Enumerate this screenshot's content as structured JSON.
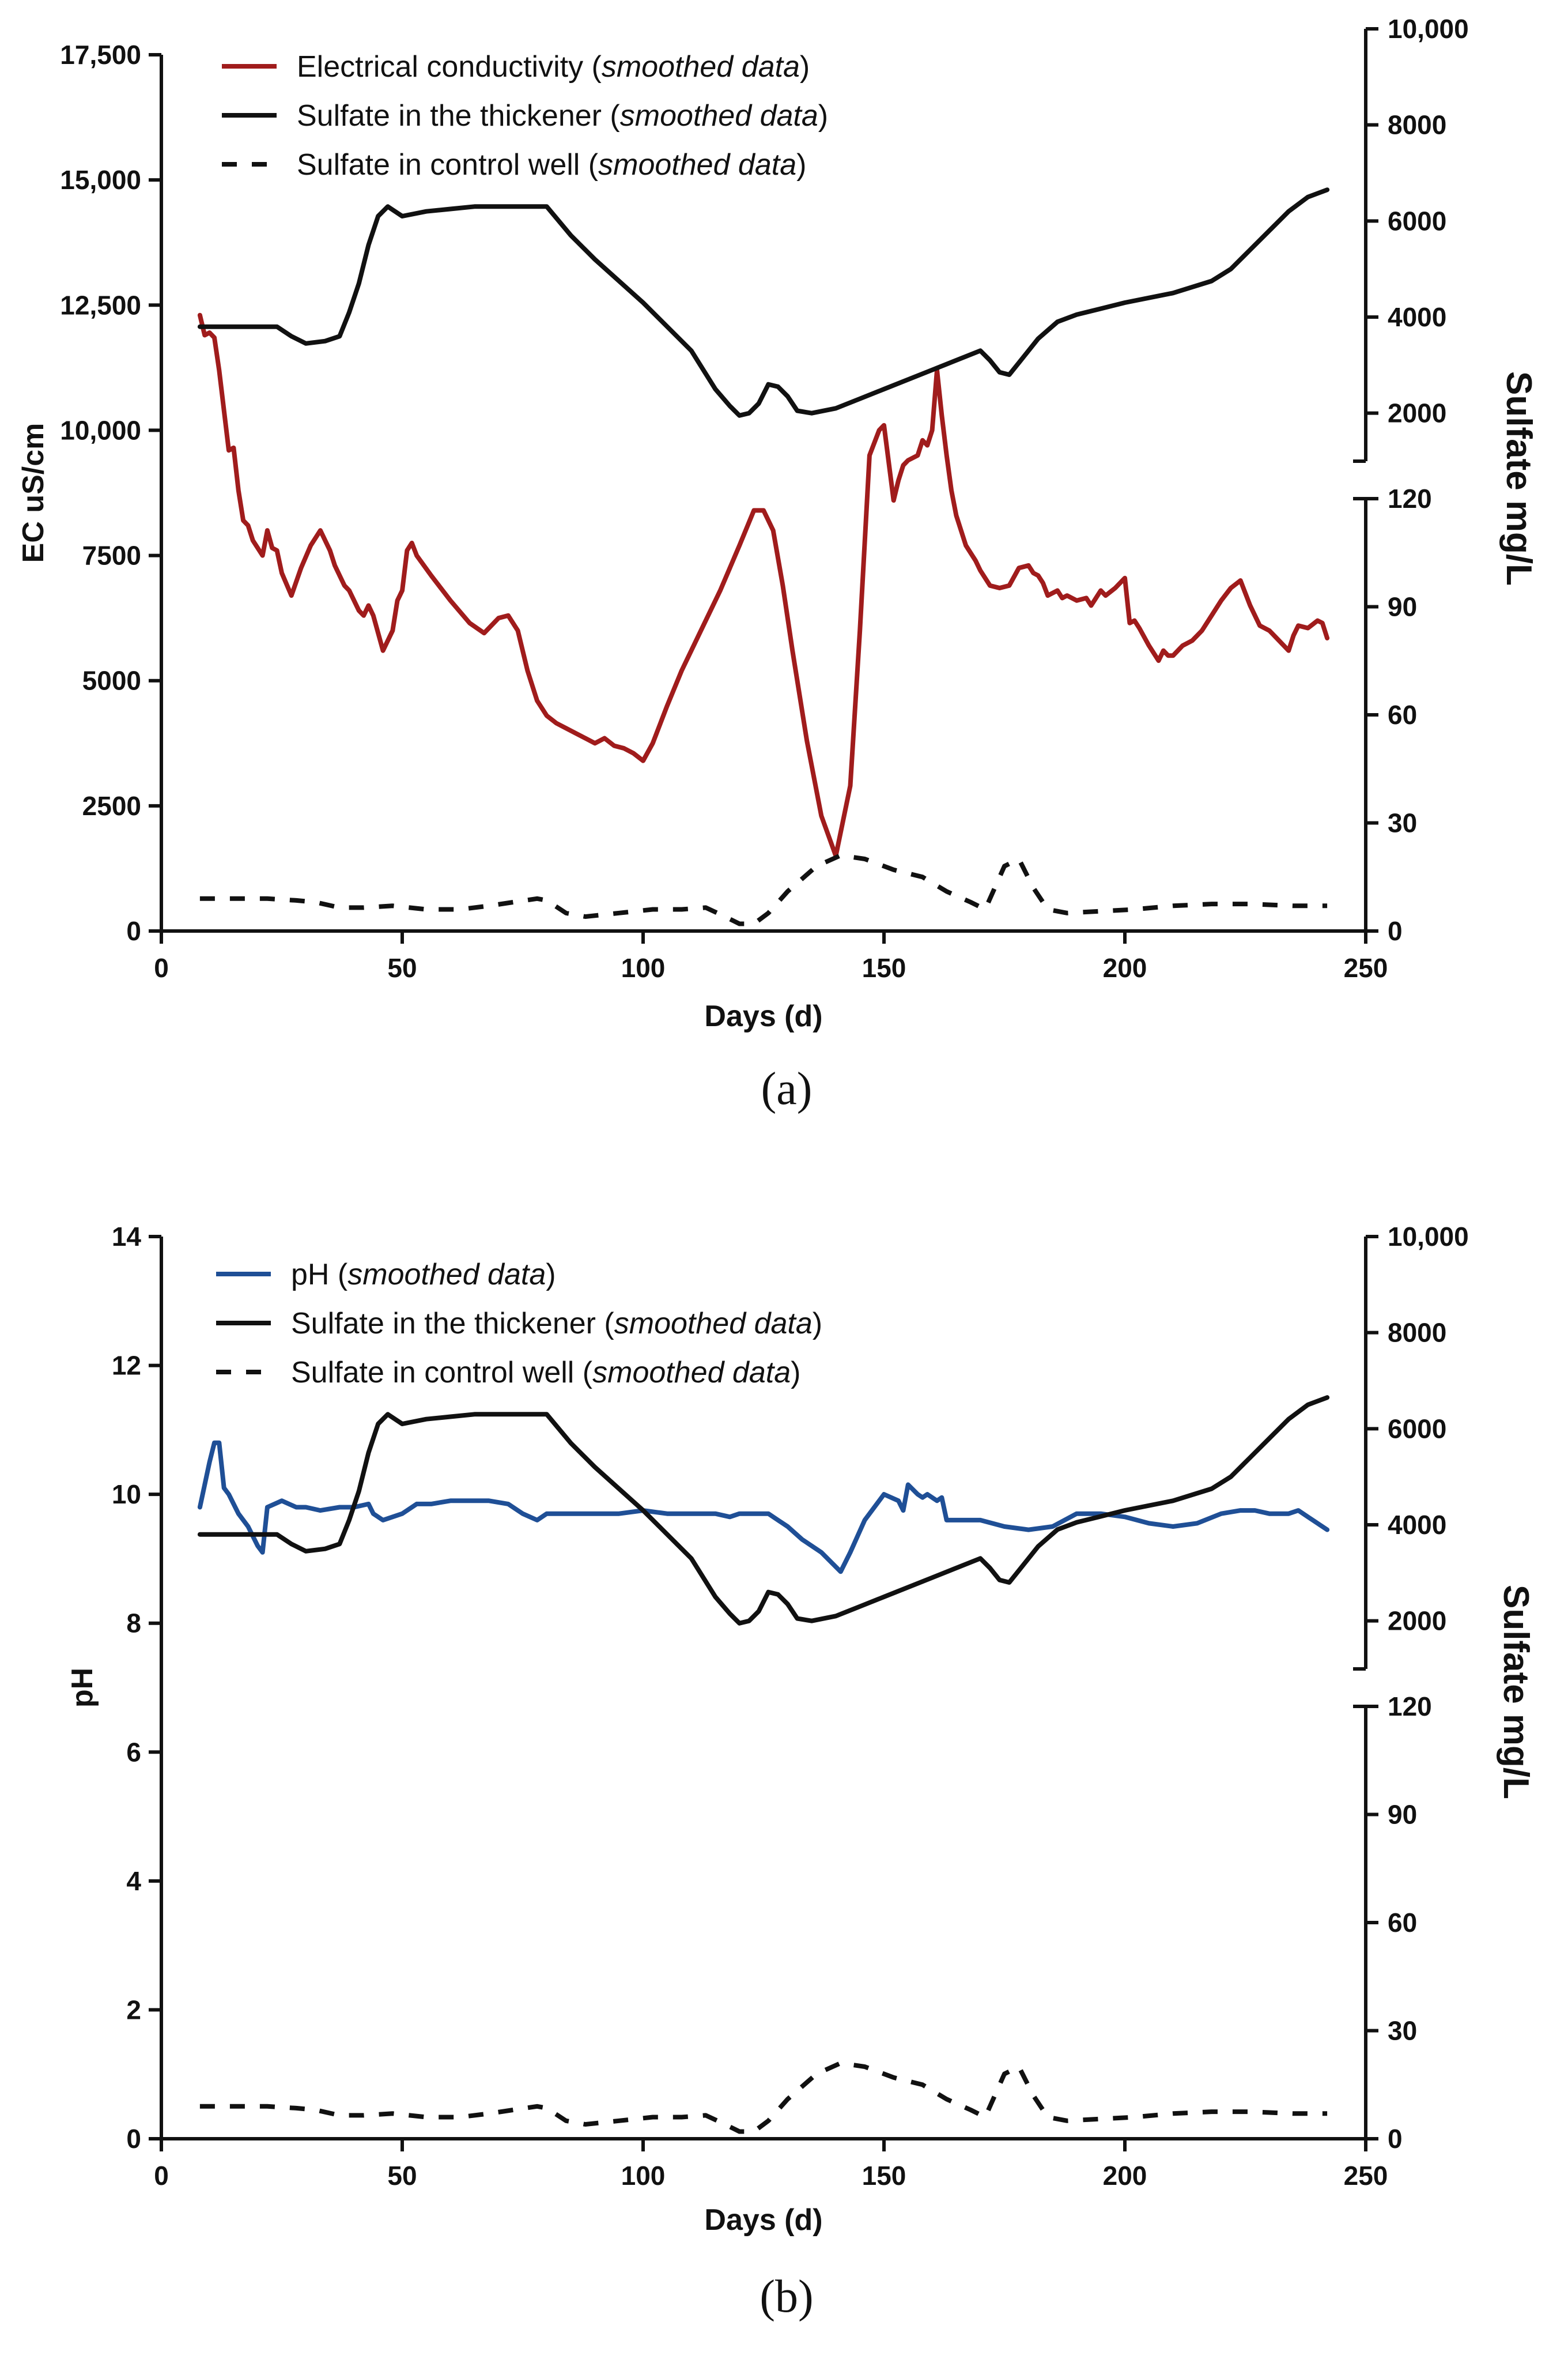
{
  "chart_data": [
    {
      "id": "a",
      "type": "line",
      "caption": "(a)",
      "xlabel": "Days (d)",
      "xlim": [
        0,
        250
      ],
      "xticks": [
        0,
        50,
        100,
        150,
        200,
        250
      ],
      "left_axis": {
        "label": "EC uS/cm",
        "lim": [
          0,
          17500
        ],
        "ticks": [
          0,
          2500,
          5000,
          7500,
          10000,
          12500,
          15000,
          17500
        ],
        "tick_labels": [
          "0",
          "2500",
          "5000",
          "7500",
          "10,000",
          "12,500",
          "15,000",
          "17,500"
        ]
      },
      "right_axis": {
        "label": "Sulfate  mg/L",
        "upper": {
          "lim": [
            1000,
            10000
          ],
          "ticks": [
            2000,
            4000,
            6000,
            8000,
            10000
          ],
          "tick_labels": [
            "2000",
            "4000",
            "6000",
            "8000",
            "10,000"
          ]
        },
        "lower": {
          "lim": [
            0,
            120
          ],
          "ticks": [
            0,
            30,
            60,
            90,
            120
          ],
          "tick_labels": [
            "0",
            "30",
            "60",
            "90",
            "120"
          ]
        }
      },
      "legend": [
        {
          "name": "Electrical conductivity",
          "note": "smoothed data",
          "color": "#a01c1c",
          "style": "solid"
        },
        {
          "name": "Sulfate in the thickener",
          "note": "smoothed data",
          "color": "#111111",
          "style": "solid"
        },
        {
          "name": "Sulfate in control well",
          "note": "smoothed data",
          "color": "#111111",
          "style": "dashed"
        }
      ],
      "series": [
        {
          "name": "Electrical conductivity",
          "axis": "left",
          "color": "#a01c1c",
          "dash": false,
          "x": [
            8,
            9,
            10,
            11,
            12,
            14,
            15,
            16,
            17,
            18,
            19,
            21,
            22,
            23,
            24,
            25,
            27,
            29,
            31,
            33,
            35,
            36,
            38,
            39,
            40,
            41,
            42,
            43,
            44,
            46,
            48,
            49,
            50,
            51,
            52,
            53,
            56,
            60,
            64,
            67,
            70,
            72,
            74,
            76,
            78,
            80,
            82,
            84,
            86,
            88,
            90,
            92,
            94,
            96,
            98,
            100,
            102,
            105,
            108,
            112,
            116,
            120,
            123,
            125,
            127,
            129,
            131,
            134,
            137,
            140,
            143,
            145,
            147,
            149,
            150,
            152,
            153,
            154,
            155,
            157,
            158,
            159,
            160,
            161,
            162,
            163,
            164,
            165,
            167,
            169,
            170,
            172,
            174,
            176,
            178,
            180,
            181,
            182,
            183,
            184,
            186,
            187,
            188,
            190,
            192,
            193,
            195,
            196,
            198,
            200,
            201,
            202,
            203,
            205,
            207,
            208,
            209,
            210,
            212,
            214,
            216,
            218,
            220,
            222,
            224,
            226,
            228,
            230,
            232,
            234,
            235,
            236,
            238,
            240,
            241,
            242
          ],
          "y": [
            12300,
            11900,
            11950,
            11850,
            11200,
            9600,
            9650,
            8800,
            8200,
            8100,
            7800,
            7500,
            8000,
            7650,
            7600,
            7150,
            6700,
            7250,
            7700,
            8000,
            7600,
            7300,
            6900,
            6800,
            6600,
            6400,
            6300,
            6500,
            6300,
            5600,
            6000,
            6600,
            6800,
            7600,
            7750,
            7500,
            7100,
            6600,
            6150,
            5950,
            6250,
            6300,
            6000,
            5200,
            4600,
            4300,
            4150,
            4050,
            3950,
            3850,
            3750,
            3850,
            3700,
            3650,
            3550,
            3400,
            3750,
            4500,
            5200,
            6000,
            6800,
            7700,
            8400,
            8400,
            8000,
            6900,
            5600,
            3800,
            2300,
            1500,
            2900,
            6000,
            9500,
            10000,
            10100,
            8600,
            9000,
            9300,
            9400,
            9500,
            9800,
            9700,
            10000,
            11200,
            10300,
            9500,
            8800,
            8300,
            7700,
            7400,
            7200,
            6900,
            6850,
            6900,
            7250,
            7300,
            7150,
            7100,
            6950,
            6700,
            6800,
            6650,
            6700,
            6600,
            6650,
            6500,
            6800,
            6700,
            6850,
            7050,
            6150,
            6200,
            6050,
            5700,
            5400,
            5600,
            5500,
            5500,
            5700,
            5800,
            6000,
            6300,
            6600,
            6850,
            7000,
            6500,
            6100,
            6000,
            5800,
            5600,
            5900,
            6100,
            6050,
            6200,
            6150,
            5850
          ]
        },
        {
          "name": "Sulfate in the thickener",
          "axis": "right-upper",
          "color": "#111111",
          "dash": false,
          "x": [
            8,
            14,
            20,
            24,
            27,
            30,
            34,
            37,
            39,
            41,
            43,
            45,
            47,
            50,
            55,
            60,
            65,
            70,
            75,
            80,
            85,
            90,
            100,
            110,
            115,
            118,
            120,
            122,
            124,
            126,
            128,
            130,
            132,
            135,
            140,
            145,
            150,
            160,
            170,
            172,
            174,
            176,
            178,
            182,
            186,
            190,
            200,
            210,
            218,
            222,
            226,
            230,
            234,
            238,
            242
          ],
          "y": [
            3800,
            3800,
            3800,
            3800,
            3600,
            3450,
            3500,
            3600,
            4100,
            4700,
            5500,
            6100,
            6300,
            6100,
            6200,
            6250,
            6300,
            6300,
            6300,
            6300,
            5700,
            5200,
            4300,
            3300,
            2500,
            2150,
            1950,
            2000,
            2200,
            2600,
            2550,
            2350,
            2050,
            2000,
            2100,
            2300,
            2500,
            2900,
            3300,
            3100,
            2850,
            2800,
            3050,
            3550,
            3900,
            4050,
            4300,
            4500,
            4750,
            5000,
            5400,
            5800,
            6200,
            6500,
            6650
          ]
        },
        {
          "name": "Sulfate in control well",
          "axis": "right-lower",
          "color": "#111111",
          "dash": true,
          "x": [
            8,
            15,
            22,
            28,
            32,
            37,
            42,
            48,
            55,
            62,
            68,
            73,
            78,
            80,
            84,
            88,
            95,
            102,
            108,
            113,
            117,
            120,
            123,
            126,
            130,
            136,
            141,
            146,
            152,
            158,
            163,
            168,
            171,
            173,
            175,
            178,
            181,
            184,
            188,
            195,
            202,
            210,
            218,
            226,
            235,
            242
          ],
          "y": [
            9,
            9,
            9,
            8.5,
            8,
            6.5,
            6.5,
            7,
            6,
            6,
            7,
            8,
            9,
            8.5,
            5,
            4,
            5,
            6,
            6,
            6.5,
            4,
            2,
            2,
            5,
            11,
            18,
            21,
            20,
            17,
            15,
            11,
            8,
            6,
            12,
            18,
            20,
            12,
            6,
            5,
            5.5,
            6,
            7,
            7.5,
            7.5,
            7,
            7
          ]
        }
      ]
    },
    {
      "id": "b",
      "type": "line",
      "caption": "(b)",
      "xlabel": "Days (d)",
      "xlim": [
        0,
        250
      ],
      "xticks": [
        0,
        50,
        100,
        150,
        200,
        250
      ],
      "left_axis": {
        "label": "pH",
        "lim": [
          0,
          14
        ],
        "ticks": [
          0,
          2,
          4,
          6,
          8,
          10,
          12,
          14
        ],
        "tick_labels": [
          "0",
          "2",
          "4",
          "6",
          "8",
          "10",
          "12",
          "14"
        ]
      },
      "right_axis": {
        "label": "Sulfate  mg/L",
        "upper": {
          "lim": [
            1000,
            10000
          ],
          "ticks": [
            2000,
            4000,
            6000,
            8000,
            10000
          ],
          "tick_labels": [
            "2000",
            "4000",
            "6000",
            "8000",
            "10,000"
          ]
        },
        "lower": {
          "lim": [
            0,
            120
          ],
          "ticks": [
            0,
            30,
            60,
            90,
            120
          ],
          "tick_labels": [
            "0",
            "30",
            "60",
            "90",
            "120"
          ]
        }
      },
      "legend": [
        {
          "name": "pH",
          "note": "smoothed data",
          "color": "#1f4f96",
          "style": "solid"
        },
        {
          "name": "Sulfate in the thickener",
          "note": "smoothed data",
          "color": "#111111",
          "style": "solid"
        },
        {
          "name": "Sulfate in control well",
          "note": "smoothed data",
          "color": "#111111",
          "style": "dashed"
        }
      ],
      "series": [
        {
          "name": "pH",
          "axis": "left",
          "color": "#1f4f96",
          "dash": false,
          "x": [
            8,
            10,
            11,
            12,
            13,
            14,
            16,
            18,
            20,
            21,
            22,
            25,
            28,
            30,
            33,
            37,
            40,
            43,
            44,
            46,
            50,
            53,
            56,
            60,
            64,
            68,
            72,
            75,
            78,
            80,
            83,
            90,
            95,
            100,
            105,
            110,
            115,
            118,
            120,
            123,
            126,
            128,
            130,
            133,
            137,
            141,
            143,
            146,
            150,
            153,
            154,
            155,
            157,
            158,
            159,
            161,
            162,
            163,
            165,
            170,
            175,
            180,
            185,
            190,
            195,
            200,
            205,
            210,
            215,
            220,
            224,
            227,
            230,
            234,
            236,
            238,
            240,
            242
          ],
          "y": [
            9.8,
            10.5,
            10.8,
            10.8,
            10.1,
            10.0,
            9.7,
            9.5,
            9.2,
            9.1,
            9.8,
            9.9,
            9.8,
            9.8,
            9.75,
            9.8,
            9.8,
            9.85,
            9.7,
            9.6,
            9.7,
            9.85,
            9.85,
            9.9,
            9.9,
            9.9,
            9.85,
            9.7,
            9.6,
            9.7,
            9.7,
            9.7,
            9.7,
            9.75,
            9.7,
            9.7,
            9.7,
            9.65,
            9.7,
            9.7,
            9.7,
            9.6,
            9.5,
            9.3,
            9.1,
            8.8,
            9.1,
            9.6,
            10.0,
            9.9,
            9.75,
            10.15,
            10.0,
            9.95,
            10.0,
            9.9,
            9.95,
            9.6,
            9.6,
            9.6,
            9.5,
            9.45,
            9.5,
            9.7,
            9.7,
            9.65,
            9.55,
            9.5,
            9.55,
            9.7,
            9.75,
            9.75,
            9.7,
            9.7,
            9.75,
            9.65,
            9.55,
            9.45
          ]
        },
        {
          "name": "Sulfate in the thickener",
          "axis": "right-upper",
          "color": "#111111",
          "dash": false,
          "x": [
            8,
            14,
            20,
            24,
            27,
            30,
            34,
            37,
            39,
            41,
            43,
            45,
            47,
            50,
            55,
            60,
            65,
            70,
            75,
            80,
            85,
            90,
            100,
            110,
            115,
            118,
            120,
            122,
            124,
            126,
            128,
            130,
            132,
            135,
            140,
            145,
            150,
            160,
            170,
            172,
            174,
            176,
            178,
            182,
            186,
            190,
            200,
            210,
            218,
            222,
            226,
            230,
            234,
            238,
            242
          ],
          "y": [
            3800,
            3800,
            3800,
            3800,
            3600,
            3450,
            3500,
            3600,
            4100,
            4700,
            5500,
            6100,
            6300,
            6100,
            6200,
            6250,
            6300,
            6300,
            6300,
            6300,
            5700,
            5200,
            4300,
            3300,
            2500,
            2150,
            1950,
            2000,
            2200,
            2600,
            2550,
            2350,
            2050,
            2000,
            2100,
            2300,
            2500,
            2900,
            3300,
            3100,
            2850,
            2800,
            3050,
            3550,
            3900,
            4050,
            4300,
            4500,
            4750,
            5000,
            5400,
            5800,
            6200,
            6500,
            6650
          ]
        },
        {
          "name": "Sulfate in control well",
          "axis": "right-lower",
          "color": "#111111",
          "dash": true,
          "x": [
            8,
            15,
            22,
            28,
            32,
            37,
            42,
            48,
            55,
            62,
            68,
            73,
            78,
            80,
            84,
            88,
            95,
            102,
            108,
            113,
            117,
            120,
            123,
            126,
            130,
            136,
            141,
            146,
            152,
            158,
            163,
            168,
            171,
            173,
            175,
            178,
            181,
            184,
            188,
            195,
            202,
            210,
            218,
            226,
            235,
            242
          ],
          "y": [
            9,
            9,
            9,
            8.5,
            8,
            6.5,
            6.5,
            7,
            6,
            6,
            7,
            8,
            9,
            8.5,
            5,
            4,
            5,
            6,
            6,
            6.5,
            4,
            2,
            2,
            5,
            11,
            18,
            21,
            20,
            17,
            15,
            11,
            8,
            6,
            12,
            18,
            20,
            12,
            6,
            5,
            5.5,
            6,
            7,
            7.5,
            7.5,
            7,
            7
          ]
        }
      ]
    }
  ]
}
